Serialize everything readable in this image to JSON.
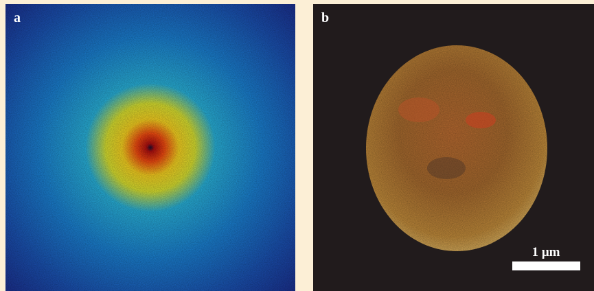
{
  "panels": [
    {
      "label": "a"
    },
    {
      "label": "b",
      "scale_bar": "1 μm"
    }
  ]
}
